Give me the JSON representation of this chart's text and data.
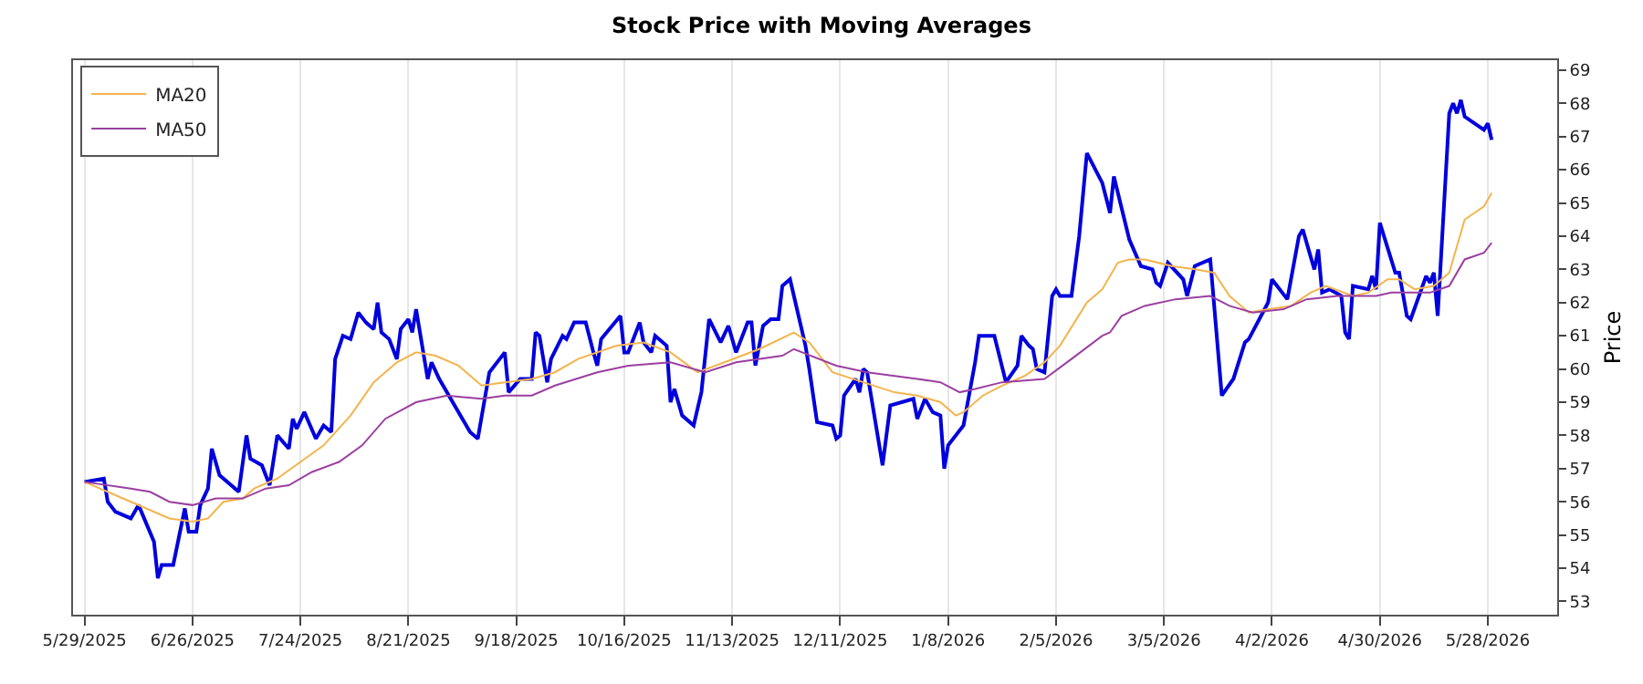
{
  "chart_data": {
    "type": "line",
    "title": "Stock Price with Moving Averages",
    "ylabel": "Price",
    "xlim": [
      "2025-05-26",
      "2026-06-15"
    ],
    "ylim": [
      52.6,
      69.3
    ],
    "xticks": [
      {
        "value": "2025-05-29",
        "label": "5/29/2025"
      },
      {
        "value": "2025-06-26",
        "label": "6/26/2025"
      },
      {
        "value": "2025-07-24",
        "label": "7/24/2025"
      },
      {
        "value": "2025-08-21",
        "label": "8/21/2025"
      },
      {
        "value": "2025-09-18",
        "label": "9/18/2025"
      },
      {
        "value": "2025-10-16",
        "label": "10/16/2025"
      },
      {
        "value": "2025-11-13",
        "label": "11/13/2025"
      },
      {
        "value": "2025-12-11",
        "label": "12/11/2025"
      },
      {
        "value": "2026-01-08",
        "label": "1/8/2026"
      },
      {
        "value": "2026-02-05",
        "label": "2/5/2026"
      },
      {
        "value": "2026-03-05",
        "label": "3/5/2026"
      },
      {
        "value": "2026-04-02",
        "label": "4/2/2026"
      },
      {
        "value": "2026-04-30",
        "label": "4/30/2026"
      },
      {
        "value": "2026-05-28",
        "label": "5/28/2026"
      }
    ],
    "yticks": [
      53,
      54,
      55,
      56,
      57,
      58,
      59,
      60,
      61,
      62,
      63,
      64,
      65,
      66,
      67,
      68,
      69
    ],
    "grid": "x",
    "legend": "top left",
    "marker": "none",
    "line_style": "solid",
    "series": [
      {
        "color": "#0000dd",
        "x": [
          "2025-05-29",
          "2025-06-03",
          "2025-06-04",
          "2025-06-06",
          "2025-06-10",
          "2025-06-12",
          "2025-06-16",
          "2025-06-17",
          "2025-06-18",
          "2025-06-21",
          "2025-06-24",
          "2025-06-25",
          "2025-06-27",
          "2025-06-28",
          "2025-06-30",
          "2025-07-01",
          "2025-07-03",
          "2025-07-08",
          "2025-07-10",
          "2025-07-11",
          "2025-07-14",
          "2025-07-16",
          "2025-07-18",
          "2025-07-21",
          "2025-07-22",
          "2025-07-23",
          "2025-07-25",
          "2025-07-28",
          "2025-07-30",
          "2025-08-01",
          "2025-08-02",
          "2025-08-04",
          "2025-08-06",
          "2025-08-08",
          "2025-08-10",
          "2025-08-12",
          "2025-08-13",
          "2025-08-14",
          "2025-08-16",
          "2025-08-18",
          "2025-08-19",
          "2025-08-21",
          "2025-08-22",
          "2025-08-23",
          "2025-08-26",
          "2025-08-27",
          "2025-08-29",
          "2025-09-04",
          "2025-09-06",
          "2025-09-08",
          "2025-09-11",
          "2025-09-15",
          "2025-09-16",
          "2025-09-19",
          "2025-09-22",
          "2025-09-23",
          "2025-09-24",
          "2025-09-26",
          "2025-09-27",
          "2025-09-30",
          "2025-10-01",
          "2025-10-03",
          "2025-10-06",
          "2025-10-08",
          "2025-10-09",
          "2025-10-10",
          "2025-10-15",
          "2025-10-16",
          "2025-10-17",
          "2025-10-20",
          "2025-10-21",
          "2025-10-23",
          "2025-10-24",
          "2025-10-27",
          "2025-10-28",
          "2025-10-29",
          "2025-10-31",
          "2025-11-03",
          "2025-11-05",
          "2025-11-07",
          "2025-11-10",
          "2025-11-12",
          "2025-11-14",
          "2025-11-17",
          "2025-11-18",
          "2025-11-19",
          "2025-11-21",
          "2025-11-23",
          "2025-11-25",
          "2025-11-26",
          "2025-11-28",
          "2025-12-02",
          "2025-12-03",
          "2025-12-05",
          "2025-12-09",
          "2025-12-10",
          "2025-12-11",
          "2025-12-12",
          "2025-12-15",
          "2025-12-16",
          "2025-12-17",
          "2025-12-18",
          "2025-12-22",
          "2025-12-24",
          "2025-12-30",
          "2025-12-31",
          "2026-01-02",
          "2026-01-04",
          "2026-01-06",
          "2026-01-07",
          "2026-01-08",
          "2026-01-12",
          "2026-01-15",
          "2026-01-16",
          "2026-01-20",
          "2026-01-23",
          "2026-01-26",
          "2026-01-27",
          "2026-01-29",
          "2026-01-30",
          "2026-01-31",
          "2026-02-02",
          "2026-02-04",
          "2026-02-05",
          "2026-02-06",
          "2026-02-09",
          "2026-02-11",
          "2026-02-13",
          "2026-02-17",
          "2026-02-19",
          "2026-02-20",
          "2026-02-24",
          "2026-02-27",
          "2026-03-02",
          "2026-03-03",
          "2026-03-04",
          "2026-03-06",
          "2026-03-10",
          "2026-03-11",
          "2026-03-13",
          "2026-03-17",
          "2026-03-20",
          "2026-03-23",
          "2026-03-26",
          "2026-03-27",
          "2026-04-01",
          "2026-04-02",
          "2026-04-06",
          "2026-04-09",
          "2026-04-10",
          "2026-04-13",
          "2026-04-14",
          "2026-04-15",
          "2026-04-17",
          "2026-04-20",
          "2026-04-21",
          "2026-04-22",
          "2026-04-23",
          "2026-04-27",
          "2026-04-28",
          "2026-04-29",
          "2026-04-30",
          "2026-05-04",
          "2026-05-05",
          "2026-05-07",
          "2026-05-08",
          "2026-05-12",
          "2026-05-13",
          "2026-05-14",
          "2026-05-15",
          "2026-05-18",
          "2026-05-19",
          "2026-05-20",
          "2026-05-21",
          "2026-05-22",
          "2026-05-27",
          "2026-05-28",
          "2026-05-29"
        ],
        "values": [
          56.6,
          56.7,
          56.0,
          55.7,
          55.5,
          55.9,
          54.8,
          53.7,
          54.1,
          54.1,
          55.8,
          55.1,
          55.1,
          55.9,
          56.4,
          57.6,
          56.8,
          56.3,
          58.0,
          57.3,
          57.1,
          56.5,
          58.0,
          57.6,
          58.5,
          58.2,
          58.7,
          57.9,
          58.3,
          58.1,
          60.3,
          61.0,
          60.9,
          61.7,
          61.4,
          61.2,
          62.0,
          61.1,
          60.9,
          60.3,
          61.2,
          61.5,
          61.1,
          61.8,
          59.7,
          60.2,
          59.7,
          58.5,
          58.1,
          57.9,
          59.9,
          60.5,
          59.3,
          59.7,
          59.7,
          61.1,
          61.0,
          59.6,
          60.3,
          61.0,
          60.9,
          61.4,
          61.4,
          60.5,
          60.1,
          60.9,
          61.6,
          60.5,
          60.5,
          61.4,
          60.8,
          60.5,
          61.0,
          60.7,
          59.0,
          59.4,
          58.6,
          58.3,
          59.3,
          61.5,
          60.8,
          61.3,
          60.5,
          61.4,
          61.4,
          60.1,
          61.3,
          61.5,
          61.5,
          62.5,
          62.7,
          60.7,
          60.0,
          58.4,
          58.3,
          57.9,
          58.0,
          59.2,
          59.7,
          59.3,
          60.0,
          59.9,
          57.1,
          58.9,
          59.1,
          58.5,
          59.1,
          58.7,
          58.6,
          57.0,
          57.7,
          58.3,
          60.2,
          61.0,
          61.0,
          59.6,
          60.1,
          61.0,
          60.7,
          60.6,
          60.0,
          59.9,
          62.2,
          62.4,
          62.2,
          62.2,
          64.0,
          66.5,
          65.6,
          64.7,
          65.8,
          63.9,
          63.1,
          63.0,
          62.6,
          62.5,
          63.2,
          62.7,
          62.2,
          63.1,
          63.3,
          59.2,
          59.7,
          60.8,
          60.9,
          62.0,
          62.7,
          62.1,
          64.0,
          64.2,
          63.0,
          63.6,
          62.3,
          62.4,
          62.2,
          61.1,
          60.9,
          62.5,
          62.4,
          62.8,
          62.4,
          64.4,
          62.9,
          62.9,
          61.6,
          61.5,
          62.8,
          62.6,
          62.9,
          61.6,
          67.7,
          68.0,
          67.7,
          68.1,
          67.6,
          67.2,
          67.4,
          66.9
        ]
      },
      {
        "name": "MA20",
        "color": "#f4b44c",
        "x": [
          "2025-05-29",
          "2025-06-10",
          "2025-06-20",
          "2025-06-26",
          "2025-06-30",
          "2025-07-04",
          "2025-07-09",
          "2025-07-12",
          "2025-07-18",
          "2025-07-24",
          "2025-07-30",
          "2025-08-06",
          "2025-08-12",
          "2025-08-18",
          "2025-08-23",
          "2025-08-28",
          "2025-09-03",
          "2025-09-09",
          "2025-09-15",
          "2025-09-22",
          "2025-09-28",
          "2025-10-04",
          "2025-10-14",
          "2025-10-21",
          "2025-10-28",
          "2025-11-04",
          "2025-11-11",
          "2025-11-20",
          "2025-11-29",
          "2025-12-03",
          "2025-12-09",
          "2025-12-17",
          "2025-12-25",
          "2025-12-31",
          "2026-01-06",
          "2026-01-10",
          "2026-01-12",
          "2026-01-17",
          "2026-01-22",
          "2026-01-28",
          "2026-02-02",
          "2026-02-06",
          "2026-02-13",
          "2026-02-17",
          "2026-02-21",
          "2026-02-24",
          "2026-02-28",
          "2026-03-07",
          "2026-03-13",
          "2026-03-18",
          "2026-03-22",
          "2026-03-27",
          "2026-04-01",
          "2026-04-07",
          "2026-04-12",
          "2026-04-16",
          "2026-04-23",
          "2026-04-27",
          "2026-05-02",
          "2026-05-05",
          "2026-05-09",
          "2026-05-14",
          "2026-05-18",
          "2026-05-22",
          "2026-05-27",
          "2026-05-29"
        ],
        "values": [
          56.6,
          56.0,
          55.5,
          55.4,
          55.5,
          56.0,
          56.1,
          56.4,
          56.7,
          57.2,
          57.7,
          58.6,
          59.6,
          60.2,
          60.5,
          60.4,
          60.1,
          59.5,
          59.6,
          59.7,
          59.9,
          60.3,
          60.7,
          60.8,
          60.5,
          59.9,
          60.2,
          60.6,
          61.1,
          60.8,
          59.9,
          59.6,
          59.3,
          59.2,
          59.0,
          58.6,
          58.7,
          59.2,
          59.5,
          59.8,
          60.2,
          60.7,
          62.0,
          62.4,
          63.2,
          63.3,
          63.3,
          63.1,
          63.0,
          62.9,
          62.2,
          61.7,
          61.8,
          61.9,
          62.3,
          62.5,
          62.2,
          62.3,
          62.7,
          62.7,
          62.4,
          62.5,
          62.9,
          64.5,
          64.9,
          65.3
        ]
      },
      {
        "name": "MA50",
        "color": "#9b3fa0",
        "x": [
          "2025-05-29",
          "2025-06-10",
          "2025-06-15",
          "2025-06-20",
          "2025-06-26",
          "2025-07-02",
          "2025-07-09",
          "2025-07-15",
          "2025-07-21",
          "2025-07-27",
          "2025-08-03",
          "2025-08-09",
          "2025-08-15",
          "2025-08-23",
          "2025-08-31",
          "2025-09-09",
          "2025-09-15",
          "2025-09-22",
          "2025-09-28",
          "2025-10-09",
          "2025-10-17",
          "2025-10-28",
          "2025-11-06",
          "2025-11-14",
          "2025-11-26",
          "2025-11-29",
          "2025-12-10",
          "2025-12-18",
          "2025-12-31",
          "2026-01-06",
          "2026-01-11",
          "2026-01-15",
          "2026-01-22",
          "2026-02-02",
          "2026-02-09",
          "2026-02-17",
          "2026-02-19",
          "2026-02-22",
          "2026-02-28",
          "2026-03-08",
          "2026-03-17",
          "2026-03-22",
          "2026-03-28",
          "2026-04-05",
          "2026-04-11",
          "2026-04-19",
          "2026-04-29",
          "2026-05-03",
          "2026-05-13",
          "2026-05-18",
          "2026-05-22",
          "2026-05-27",
          "2026-05-29"
        ],
        "values": [
          56.6,
          56.4,
          56.3,
          56.0,
          55.9,
          56.1,
          56.1,
          56.4,
          56.5,
          56.9,
          57.2,
          57.7,
          58.5,
          59.0,
          59.2,
          59.1,
          59.2,
          59.2,
          59.5,
          59.9,
          60.1,
          60.2,
          59.9,
          60.2,
          60.4,
          60.6,
          60.1,
          59.9,
          59.7,
          59.6,
          59.3,
          59.4,
          59.6,
          59.7,
          60.3,
          61.0,
          61.1,
          61.6,
          61.9,
          62.1,
          62.2,
          61.9,
          61.7,
          61.8,
          62.1,
          62.2,
          62.2,
          62.3,
          62.3,
          62.5,
          63.3,
          63.5,
          63.8
        ]
      }
    ]
  }
}
